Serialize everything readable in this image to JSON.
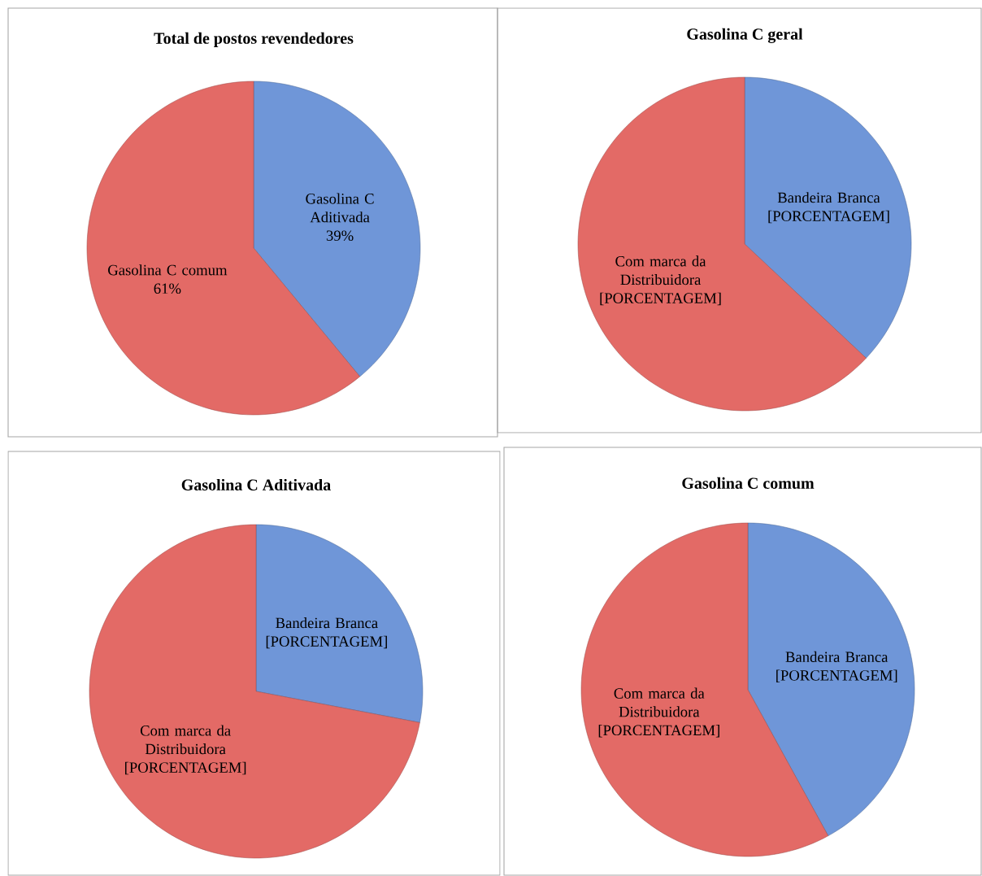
{
  "chart_data": [
    {
      "type": "pie",
      "title": "Total de postos revendedores",
      "categories": [
        "Gasolina C Aditivada",
        "Gasolina C comum"
      ],
      "values": [
        39,
        61
      ],
      "value_labels": [
        "39%",
        "61%"
      ],
      "colors": [
        "#6f96d8",
        "#e36a66"
      ]
    },
    {
      "type": "pie",
      "title": "Gasolina C geral",
      "categories": [
        "Bandeira Branca",
        "Com marca da Distribuidora"
      ],
      "values": [
        37,
        63
      ],
      "value_labels": [
        "[PORCENTAGEM]",
        "[PORCENTAGEM]"
      ],
      "colors": [
        "#6f96d8",
        "#e36a66"
      ]
    },
    {
      "type": "pie",
      "title": "Gasolina C Aditivada",
      "categories": [
        "Bandeira Branca",
        "Com marca da Distribuidora"
      ],
      "values": [
        28,
        72
      ],
      "value_labels": [
        "[PORCENTAGEM]",
        "[PORCENTAGEM]"
      ],
      "colors": [
        "#6f96d8",
        "#e36a66"
      ]
    },
    {
      "type": "pie",
      "title": "Gasolina C comum",
      "categories": [
        "Bandeira Branca",
        "Com marca da Distribuidora"
      ],
      "values": [
        42,
        58
      ],
      "value_labels": [
        "[PORCENTAGEM]",
        "[PORCENTAGEM]"
      ],
      "colors": [
        "#6f96d8",
        "#e36a66"
      ]
    }
  ]
}
